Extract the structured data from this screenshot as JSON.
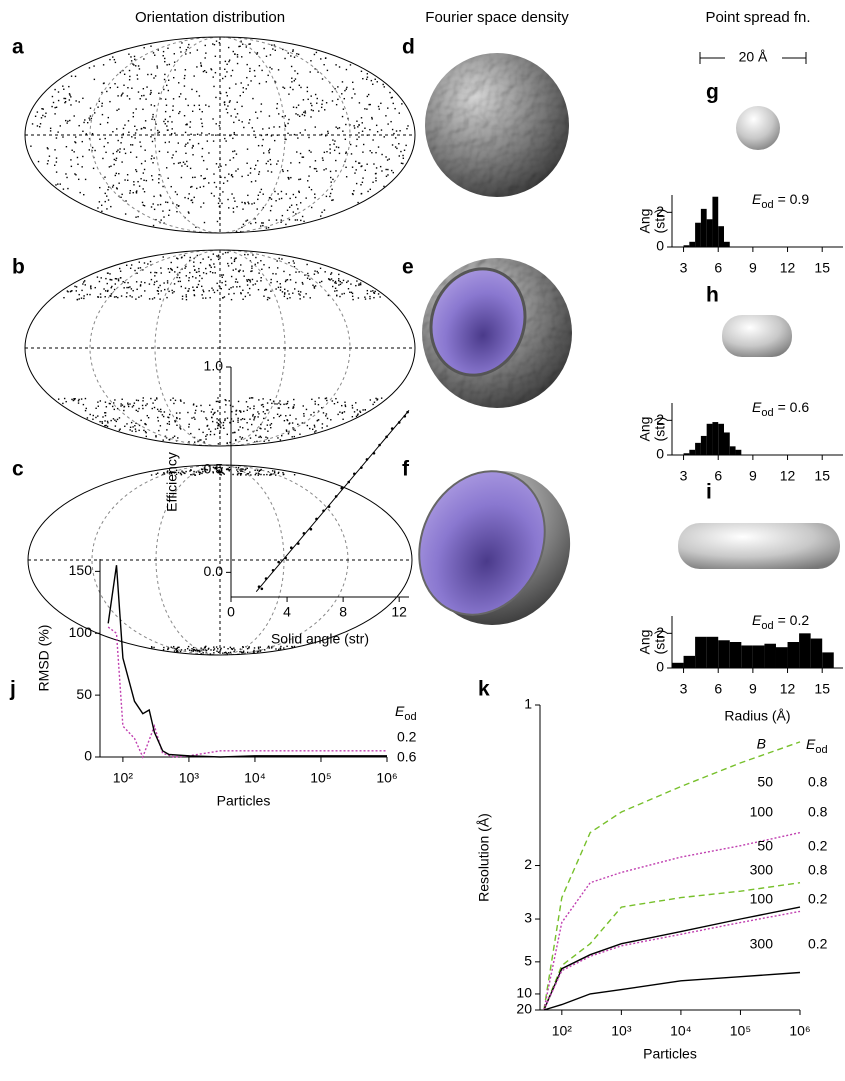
{
  "headers": [
    "Orientation distribution",
    "Fourier space density",
    "Point spread fn."
  ],
  "panel_labels": [
    "a",
    "b",
    "c",
    "d",
    "e",
    "f",
    "g",
    "h",
    "i",
    "j",
    "k"
  ],
  "scale_bar": "20 Å",
  "chart_data": [
    {
      "type": "histogram",
      "ylabel": [
        "Ang",
        "(str)"
      ],
      "annotation": {
        "symbol": "E",
        "subscript": "od",
        "text": "= 0.9"
      },
      "bins": [
        3,
        3.5,
        4,
        4.5,
        5,
        5.5,
        6,
        6.5,
        7
      ],
      "counts": [
        0.1,
        0.3,
        1.4,
        2.2,
        1.6,
        2.9,
        1.2,
        0.3
      ],
      "color": "#000000",
      "xlim": [
        2,
        16.8
      ],
      "ylim": [
        0,
        3
      ],
      "xticks": [
        3,
        6,
        9,
        12,
        15
      ],
      "yticks": [
        0,
        2
      ]
    },
    {
      "type": "histogram",
      "ylabel": [
        "Ang",
        "(str)"
      ],
      "annotation": {
        "symbol": "E",
        "subscript": "od",
        "text": "= 0.6"
      },
      "bins": [
        3,
        3.5,
        4,
        4.5,
        5,
        5.5,
        6,
        6.5,
        7,
        7.5,
        8
      ],
      "counts": [
        0.1,
        0.3,
        0.7,
        1.1,
        1.8,
        1.9,
        1.8,
        1.3,
        0.5,
        0.3
      ],
      "color": "#000000",
      "xlim": [
        2,
        16.8
      ],
      "ylim": [
        0,
        3
      ],
      "xticks": [
        3,
        6,
        9,
        12,
        15
      ],
      "yticks": [
        0,
        2
      ]
    },
    {
      "type": "histogram",
      "ylabel": [
        "Ang",
        "(str)"
      ],
      "xlabel": "Radius (Å)",
      "annotation": {
        "symbol": "E",
        "subscript": "od",
        "text": "= 0.2"
      },
      "bins": [
        2,
        3,
        4,
        5,
        6,
        7,
        8,
        9,
        10,
        11,
        12,
        13,
        14,
        15,
        16
      ],
      "counts": [
        0.3,
        0.7,
        1.8,
        1.8,
        1.6,
        1.5,
        1.3,
        1.3,
        1.4,
        1.2,
        1.5,
        2.0,
        1.7,
        0.9
      ],
      "color": "#000000",
      "xlim": [
        2,
        16.8
      ],
      "ylim": [
        0,
        3
      ],
      "xticks": [
        3,
        6,
        9,
        12,
        15
      ],
      "yticks": [
        0,
        2
      ]
    },
    {
      "type": "line",
      "xscale": "log",
      "xlabel": "Particles",
      "ylabel": "RMSD (%)",
      "legend_title": {
        "symbol": "E",
        "subscript": "od"
      },
      "xlim": [
        45,
        1000000
      ],
      "ylim": [
        0,
        160
      ],
      "xticks": [
        {
          "value": 100,
          "label": "10²"
        },
        {
          "value": 1000,
          "label": "10³"
        },
        {
          "value": 10000,
          "label": "10⁴"
        },
        {
          "value": 100000,
          "label": "10⁵"
        },
        {
          "value": 1000000,
          "label": "10⁶"
        }
      ],
      "yticks": [
        0,
        50,
        100,
        150
      ],
      "series": [
        {
          "name": "0.2",
          "color": "#c03fb0",
          "dash": "dotted",
          "x": [
            60,
            80,
            100,
            150,
            200,
            300,
            400,
            600,
            1000,
            3000,
            10000,
            100000,
            1000000
          ],
          "values": [
            105,
            100,
            25,
            15,
            0,
            25,
            3,
            0,
            1,
            5,
            5,
            5,
            5
          ]
        },
        {
          "name": "0.6",
          "color": "#000000",
          "dash": "solid",
          "x": [
            60,
            80,
            100,
            150,
            200,
            250,
            300,
            400,
            500,
            1000,
            3000,
            10000,
            100000,
            1000000
          ],
          "values": [
            108,
            155,
            80,
            45,
            35,
            38,
            20,
            5,
            2,
            1,
            0,
            1,
            1,
            1
          ]
        }
      ]
    },
    {
      "type": "scatter",
      "xlabel": "Solid angle (str)",
      "ylabel": "Efficiency",
      "color": "#000000",
      "xlim": [
        0,
        12.7
      ],
      "ylim": [
        -0.12,
        1.0
      ],
      "xticks": [
        0,
        4,
        8,
        12
      ],
      "yticks": [
        {
          "value": 0,
          "label": "0.0"
        },
        {
          "value": 0.5,
          "label": "0.5"
        },
        {
          "value": 1,
          "label": "1.0"
        }
      ],
      "x": [
        2.0,
        2.2,
        2.5,
        3.0,
        3.4,
        3.9,
        4.3,
        4.8,
        5.2,
        5.7,
        6.1,
        6.6,
        7.0,
        7.5,
        7.9,
        8.4,
        8.8,
        9.3,
        9.7,
        10.2,
        10.6,
        11.1,
        11.5,
        12.0,
        12.4,
        12.6
      ],
      "values": [
        -0.07,
        -0.08,
        -0.03,
        0.01,
        0.05,
        0.07,
        0.12,
        0.14,
        0.19,
        0.21,
        0.26,
        0.3,
        0.32,
        0.37,
        0.41,
        0.44,
        0.48,
        0.51,
        0.55,
        0.58,
        0.62,
        0.66,
        0.7,
        0.73,
        0.76,
        0.78
      ],
      "fit": {
        "x": [
          1.8,
          12.7
        ],
        "values": [
          -0.094,
          0.789
        ]
      }
    },
    {
      "type": "line",
      "xscale": "log",
      "yscale": "reciprocal",
      "xlabel": "Particles",
      "ylabel": "Resolution (Å)",
      "legend_headers": {
        "B": "B",
        "E_od": {
          "symbol": "E",
          "subscript": "od"
        }
      },
      "xlim": [
        43,
        1000000
      ],
      "ylim": [
        20,
        1
      ],
      "xticks": [
        {
          "value": 100,
          "label": "10²"
        },
        {
          "value": 1000,
          "label": "10³"
        },
        {
          "value": 10000,
          "label": "10⁴"
        },
        {
          "value": 100000,
          "label": "10⁵"
        },
        {
          "value": 1000000,
          "label": "10⁶"
        }
      ],
      "yticks": [
        20,
        10,
        5,
        3,
        2,
        1
      ],
      "x": [
        50,
        100,
        300,
        1000,
        10000,
        100000,
        1000000
      ],
      "series": [
        {
          "B": "50",
          "E_od": "0.8",
          "color": "#77c02b",
          "dash": "dashed",
          "values": [
            20,
            2.5,
            1.66,
            1.5,
            1.34,
            1.22,
            1.13
          ]
        },
        {
          "B": "100",
          "E_od": "0.8",
          "color": "#c03fb0",
          "dash": "dotted",
          "values": [
            20,
            3.1,
            2.24,
            2.09,
            1.9,
            1.78,
            1.66
          ]
        },
        {
          "B": "50",
          "E_od": "0.2",
          "color": "#77c02b",
          "dash": "dashed",
          "values": [
            20,
            5.3,
            3.9,
            2.7,
            2.5,
            2.38,
            2.24
          ]
        },
        {
          "B": "300",
          "E_od": "0.8",
          "color": "#000000",
          "dash": "solid",
          "values": [
            20,
            5.6,
            4.5,
            3.9,
            3.4,
            3.0,
            2.7
          ]
        },
        {
          "B": "100",
          "E_od": "0.2",
          "color": "#c03fb0",
          "dash": "dotted",
          "values": [
            20,
            5.8,
            4.6,
            4.0,
            3.5,
            3.1,
            2.8
          ]
        },
        {
          "B": "300",
          "E_od": "0.2",
          "color": "#000000",
          "dash": "solid",
          "values": [
            20,
            15,
            10,
            8.8,
            7.1,
            6.5,
            6.0
          ]
        }
      ]
    }
  ]
}
